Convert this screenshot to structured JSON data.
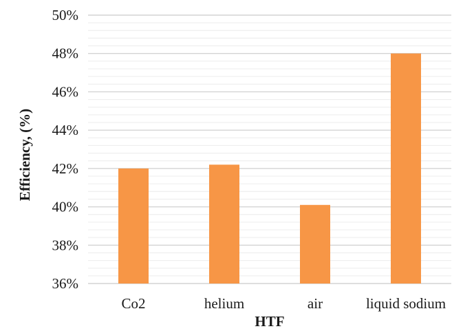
{
  "chart_data": {
    "type": "bar",
    "categories": [
      "Co2",
      "helium",
      "air",
      "liquid sodium"
    ],
    "values": [
      42.0,
      42.2,
      40.1,
      48.0
    ],
    "xlabel": "HTF",
    "ylabel": "Efficiency, (%)",
    "ylim": [
      36,
      50
    ],
    "y_ticks": [
      "36%",
      "38%",
      "40%",
      "42%",
      "44%",
      "46%",
      "48%",
      "50%"
    ],
    "y_tick_values": [
      36,
      38,
      40,
      42,
      44,
      46,
      48,
      50
    ],
    "grid": true,
    "legend": "none",
    "bar_color": "#F79646"
  }
}
